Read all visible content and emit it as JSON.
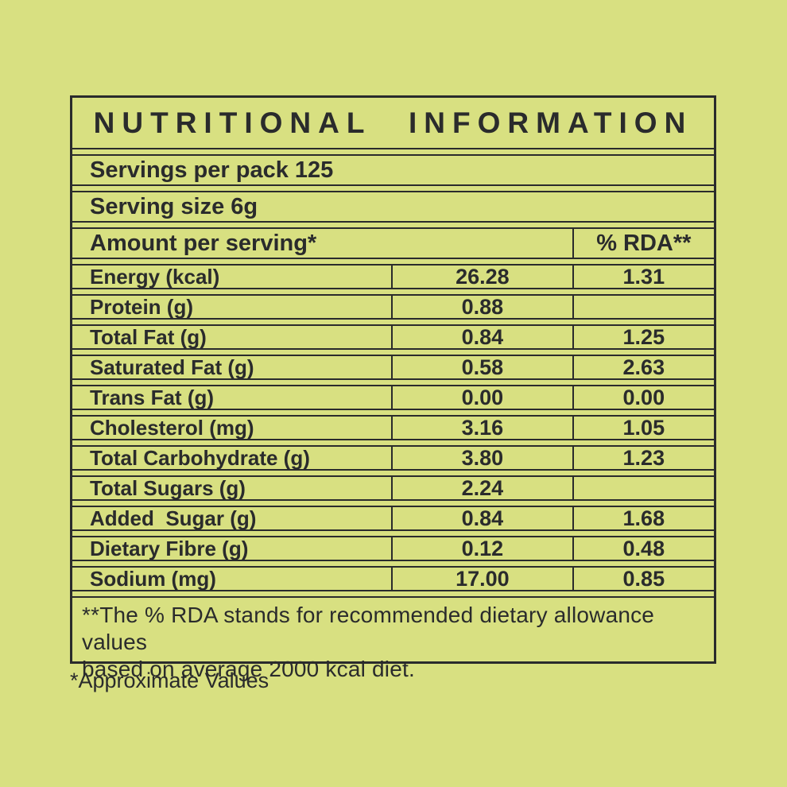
{
  "colors": {
    "background": "#d8e081",
    "ink": "#2a2b2c"
  },
  "title": "NUTRITIONAL INFORMATION",
  "servings_per_pack": "Servings per pack 125",
  "serving_size": "Serving size 6g",
  "header": {
    "amount_label": "Amount per serving*",
    "rda_label": "% RDA**"
  },
  "rows": [
    {
      "label": "Energy (kcal)",
      "value": "26.28",
      "rda": "1.31"
    },
    {
      "label": "Protein (g)",
      "value": "0.88",
      "rda": ""
    },
    {
      "label": "Total Fat (g)",
      "value": "0.84",
      "rda": "1.25"
    },
    {
      "label": "Saturated Fat (g)",
      "value": "0.58",
      "rda": "2.63"
    },
    {
      "label": "Trans Fat (g)",
      "value": "0.00",
      "rda": "0.00"
    },
    {
      "label": "Cholesterol (mg)",
      "value": "3.16",
      "rda": "1.05"
    },
    {
      "label": "Total Carbohydrate (g)",
      "value": "3.80",
      "rda": "1.23"
    },
    {
      "label": "Total Sugars (g)",
      "value": "2.24",
      "rda": ""
    },
    {
      "label": "Added  Sugar (g)",
      "value": "0.84",
      "rda": "1.68"
    },
    {
      "label": "Dietary Fibre (g)",
      "value": "0.12",
      "rda": "0.48"
    },
    {
      "label": "Sodium (mg)",
      "value": "17.00",
      "rda": "0.85"
    }
  ],
  "footnote": {
    "line1": "**The % RDA stands for recommended dietary allowance values",
    "line2": "based on average 2000 kcal diet."
  },
  "approximate_note": "*Approximate Values"
}
